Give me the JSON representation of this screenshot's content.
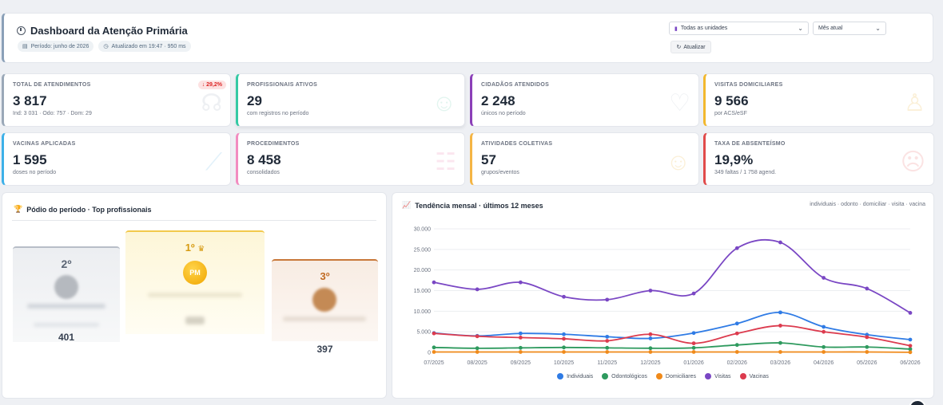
{
  "header": {
    "title": "Dashboard da Atenção Primária",
    "period_chip": "Período: junho de 2026",
    "updated_chip": "Atualizado em 19:47 · 950 ms",
    "unit_select": "Todas as unidades",
    "month_select": "Mês atual",
    "refresh_label": "Atualizar"
  },
  "cards": [
    {
      "label": "TOTAL DE ATENDIMENTOS",
      "value": "3 817",
      "sub": "Ind: 3 031 · Odo: 757 · Dom: 29",
      "badge": "↓ 29,2%",
      "color": "#9aa8b8",
      "icon": "stethoscope-icon"
    },
    {
      "label": "PROFISSIONAIS ATIVOS",
      "value": "29",
      "sub": "com registros no período",
      "color": "#34c9a4",
      "icon": "team-icon"
    },
    {
      "label": "CIDADÃOS ATENDIDOS",
      "value": "2 248",
      "sub": "únicos no período",
      "color": "#8b3fb8",
      "icon": "user-heart-icon"
    },
    {
      "label": "VISITAS DOMICILIARES",
      "value": "9 566",
      "sub": "por ACS/eSF",
      "color": "#f2b82e",
      "icon": "walking-icon"
    },
    {
      "label": "VACINAS APLICADAS",
      "value": "1 595",
      "sub": "doses no período",
      "color": "#3db0e8",
      "icon": "syringe-icon"
    },
    {
      "label": "PROCEDIMENTOS",
      "value": "8 458",
      "sub": "consolidados",
      "color": "#f28cc0",
      "icon": "list-icon"
    },
    {
      "label": "ATIVIDADES COLETIVAS",
      "value": "57",
      "sub": "grupos/eventos",
      "color": "#f5b544",
      "icon": "group-icon"
    },
    {
      "label": "TAXA DE ABSENTEÍSMO",
      "value": "19,9%",
      "sub": "349 faltas / 1 758 agend.",
      "color": "#e14b4b",
      "icon": "user-x-icon"
    }
  ],
  "podium": {
    "title": "Pódio do período · Top profissionais",
    "first_rank": "1º",
    "first_initials": "PM",
    "second_rank": "2º",
    "second_score": "401",
    "third_rank": "3º",
    "third_score": "397"
  },
  "trend": {
    "title": "Tendência mensal · últimos 12 meses",
    "subtitle": "individuais · odonto · domiciliar · visita · vacina"
  },
  "chart_data": {
    "type": "line",
    "x": [
      "07/2025",
      "08/2025",
      "09/2025",
      "10/2025",
      "11/2025",
      "12/2025",
      "01/2026",
      "02/2026",
      "03/2026",
      "04/2026",
      "05/2026",
      "06/2026"
    ],
    "ylim": [
      0,
      30000
    ],
    "yticks": [
      "0",
      "5.000",
      "10.000",
      "15.000",
      "20.000",
      "25.000",
      "30.000"
    ],
    "grid": true,
    "legend": "bottom",
    "series": [
      {
        "name": "Individuais",
        "color": "#2f7be5",
        "values": [
          4700,
          4000,
          4600,
          4400,
          3800,
          3400,
          4700,
          7000,
          9700,
          6200,
          4300,
          3100
        ]
      },
      {
        "name": "Odontológicos",
        "color": "#2e9a5e",
        "values": [
          1200,
          1000,
          1100,
          1200,
          1100,
          1000,
          1100,
          1800,
          2300,
          1300,
          1300,
          800
        ]
      },
      {
        "name": "Domiciliares",
        "color": "#f08a1a",
        "values": [
          100,
          100,
          100,
          100,
          100,
          100,
          100,
          100,
          100,
          100,
          100,
          30
        ]
      },
      {
        "name": "Visitas",
        "color": "#7a47c4",
        "values": [
          17000,
          15300,
          17000,
          13500,
          12800,
          15000,
          14300,
          25300,
          26700,
          18100,
          15500,
          9600
        ]
      },
      {
        "name": "Vacinas",
        "color": "#dc3b4e",
        "values": [
          4600,
          3900,
          3600,
          3300,
          2800,
          4400,
          2200,
          4600,
          6500,
          5000,
          3700,
          1600
        ]
      }
    ]
  }
}
